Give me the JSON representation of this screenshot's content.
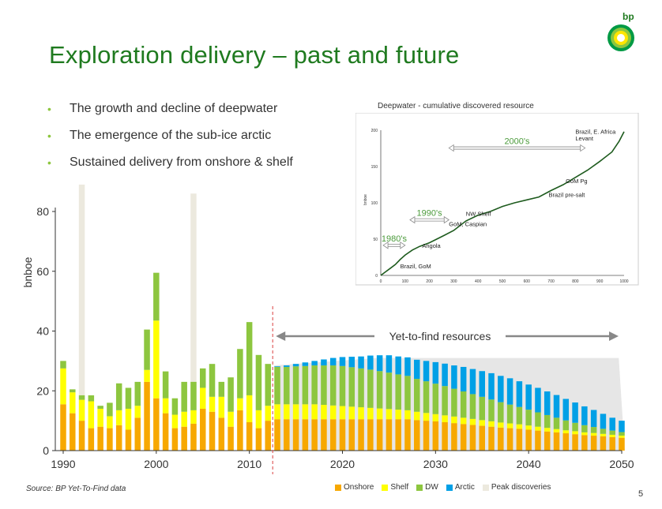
{
  "slide": {
    "title": "Exploration delivery – past and future",
    "bullets": [
      "The growth and decline of deepwater",
      "The emergence of the sub-ice arctic",
      "Sustained delivery from onshore & shelf"
    ],
    "logo_text": "bp",
    "source": "Source:  BP Yet-To-Find data",
    "page_number": "5"
  },
  "chart_data": [
    {
      "type": "bar",
      "stacked": true,
      "ylabel": "bnboe",
      "ylim": [
        0,
        80
      ],
      "yticks": [
        0,
        20,
        40,
        60,
        80
      ],
      "xticks": [
        1990,
        2000,
        2010,
        2020,
        2030,
        2040,
        2050
      ],
      "x_start": 1990,
      "annotation": "Yet-to-find resources",
      "colors": {
        "Onshore": "#f7a800",
        "Shelf": "#ffff00",
        "DW": "#8dc63f",
        "Arctic": "#00a0e6",
        "Peak discoveries": "#ece9de",
        "area": "#e6e6e6",
        "divider": "#e06060"
      },
      "series_names": [
        "Onshore",
        "Shelf",
        "DW",
        "Arctic"
      ],
      "historical": {
        "years": [
          1990,
          1991,
          1992,
          1993,
          1994,
          1995,
          1996,
          1997,
          1998,
          1999,
          2000,
          2001,
          2002,
          2003,
          2004,
          2005,
          2006,
          2007,
          2008,
          2009,
          2010,
          2011,
          2012
        ],
        "Onshore": [
          15.5,
          12.5,
          10,
          7.5,
          8,
          7.5,
          8.5,
          7,
          11,
          23,
          17.5,
          12.5,
          7.5,
          8,
          9,
          14,
          13,
          11,
          8,
          13.5,
          9.5,
          7.5,
          10
        ],
        "Shelf": [
          12,
          7,
          7,
          9,
          6,
          4,
          5,
          7,
          4,
          4,
          26,
          5,
          4.5,
          5,
          4.5,
          7,
          5,
          7,
          5,
          4,
          9,
          6,
          5
        ],
        "DW": [
          2.5,
          1,
          1.5,
          2,
          1,
          4.5,
          9,
          7,
          8,
          13.5,
          16,
          9,
          5.5,
          10,
          9.5,
          6.5,
          11,
          5,
          11.5,
          16.5,
          24.5,
          18.5,
          14
        ]
      },
      "peak_discoveries": [
        {
          "year": 1992,
          "value": 89
        },
        {
          "year": 2004,
          "value": 86
        }
      ],
      "future": {
        "years": [
          2013,
          2014,
          2015,
          2016,
          2017,
          2018,
          2019,
          2020,
          2021,
          2022,
          2023,
          2024,
          2025,
          2026,
          2027,
          2028,
          2029,
          2030,
          2031,
          2032,
          2033,
          2034,
          2035,
          2036,
          2037,
          2038,
          2039,
          2040,
          2041,
          2042,
          2043,
          2044,
          2045,
          2046,
          2047,
          2048,
          2049,
          2050
        ],
        "Onshore": [
          10.5,
          10.5,
          10.5,
          10.5,
          10.5,
          10.5,
          10.5,
          10.5,
          10.5,
          10.5,
          10.5,
          10.5,
          10.5,
          10.5,
          10.5,
          10.2,
          10,
          9.8,
          9.5,
          9.2,
          8.9,
          8.6,
          8.3,
          8,
          7.7,
          7.5,
          7.3,
          7,
          6.7,
          6.4,
          6.1,
          5.8,
          5.5,
          5.2,
          5,
          4.8,
          4.5,
          4.3
        ],
        "Shelf": [
          5,
          5,
          5,
          5,
          5,
          4.8,
          4.6,
          4.4,
          4.2,
          4,
          3.8,
          3.6,
          3.4,
          3.2,
          3,
          2.8,
          2.6,
          2.4,
          2.3,
          2.2,
          2.1,
          2,
          1.9,
          1.8,
          1.7,
          1.6,
          1.5,
          1.4,
          1.3,
          1.2,
          1.1,
          1,
          1,
          0.9,
          0.9,
          0.8,
          0.8,
          0.7
        ],
        "DW": [
          12.5,
          12.5,
          12.7,
          12.8,
          13,
          13.2,
          13.4,
          13.4,
          13.2,
          13,
          12.8,
          12.5,
          12.2,
          11.8,
          11.5,
          11,
          10.6,
          10.2,
          9.8,
          9.3,
          8.8,
          8.3,
          7.8,
          7.3,
          6.8,
          6.3,
          5.8,
          5.3,
          4.8,
          4.3,
          3.8,
          3.3,
          2.8,
          2.4,
          2,
          1.7,
          1.4,
          1.2
        ],
        "Arctic": [
          0.2,
          0.5,
          0.8,
          1.2,
          1.5,
          2,
          2.5,
          3,
          3.5,
          4,
          4.7,
          5.3,
          5.8,
          6,
          6.2,
          6.4,
          6.8,
          7.2,
          7.5,
          7.8,
          8.2,
          8.4,
          8.6,
          8.8,
          8.8,
          8.8,
          8.6,
          8.4,
          8.2,
          7.9,
          7.6,
          7.2,
          6.8,
          6.3,
          5.7,
          5,
          4.3,
          3.8
        ]
      },
      "area_envelope": {
        "years": [
          2013,
          2024,
          2050
        ],
        "values": [
          28.5,
          31,
          31
        ]
      }
    },
    {
      "type": "line",
      "title": "Deepwater - cumulative discovered resource",
      "ylabel": "bnboe",
      "xlim": [
        0,
        1000
      ],
      "ylim": [
        0,
        200
      ],
      "xticks": [
        0,
        100,
        200,
        300,
        400,
        500,
        600,
        700,
        800,
        900,
        1000
      ],
      "yticks": [
        0,
        50,
        100,
        150,
        200
      ],
      "x": [
        0,
        20,
        40,
        60,
        80,
        100,
        130,
        160,
        200,
        230,
        260,
        300,
        350,
        400,
        450,
        500,
        550,
        600,
        650,
        700,
        750,
        800,
        850,
        900,
        950,
        980,
        1000
      ],
      "y": [
        0,
        5,
        10,
        15,
        22,
        28,
        35,
        40,
        45,
        50,
        55,
        62,
        75,
        83,
        88,
        95,
        100,
        104,
        108,
        117,
        125,
        135,
        145,
        157,
        170,
        185,
        198
      ],
      "labels": [
        {
          "text": "Brazil, GoM",
          "x": 80,
          "y": 10
        },
        {
          "text": "Angola",
          "x": 170,
          "y": 38
        },
        {
          "text": "GoM, Caspian",
          "x": 280,
          "y": 68
        },
        {
          "text": "NW Shelf",
          "x": 350,
          "y": 82
        },
        {
          "text": "Brazil pre-salt",
          "x": 690,
          "y": 108
        },
        {
          "text": "GoM Pg",
          "x": 760,
          "y": 127
        },
        {
          "text": "Brazil, E. Africa",
          "x": 800,
          "y": 195
        },
        {
          "text": "Levant",
          "x": 800,
          "y": 186
        }
      ],
      "eras": [
        {
          "text": "1980's",
          "x0": 10,
          "x1": 100,
          "y": 48
        },
        {
          "text": "1990's",
          "x0": 120,
          "x1": 280,
          "y": 83
        },
        {
          "text": "2000's",
          "x0": 280,
          "x1": 840,
          "y": 182
        }
      ]
    }
  ]
}
